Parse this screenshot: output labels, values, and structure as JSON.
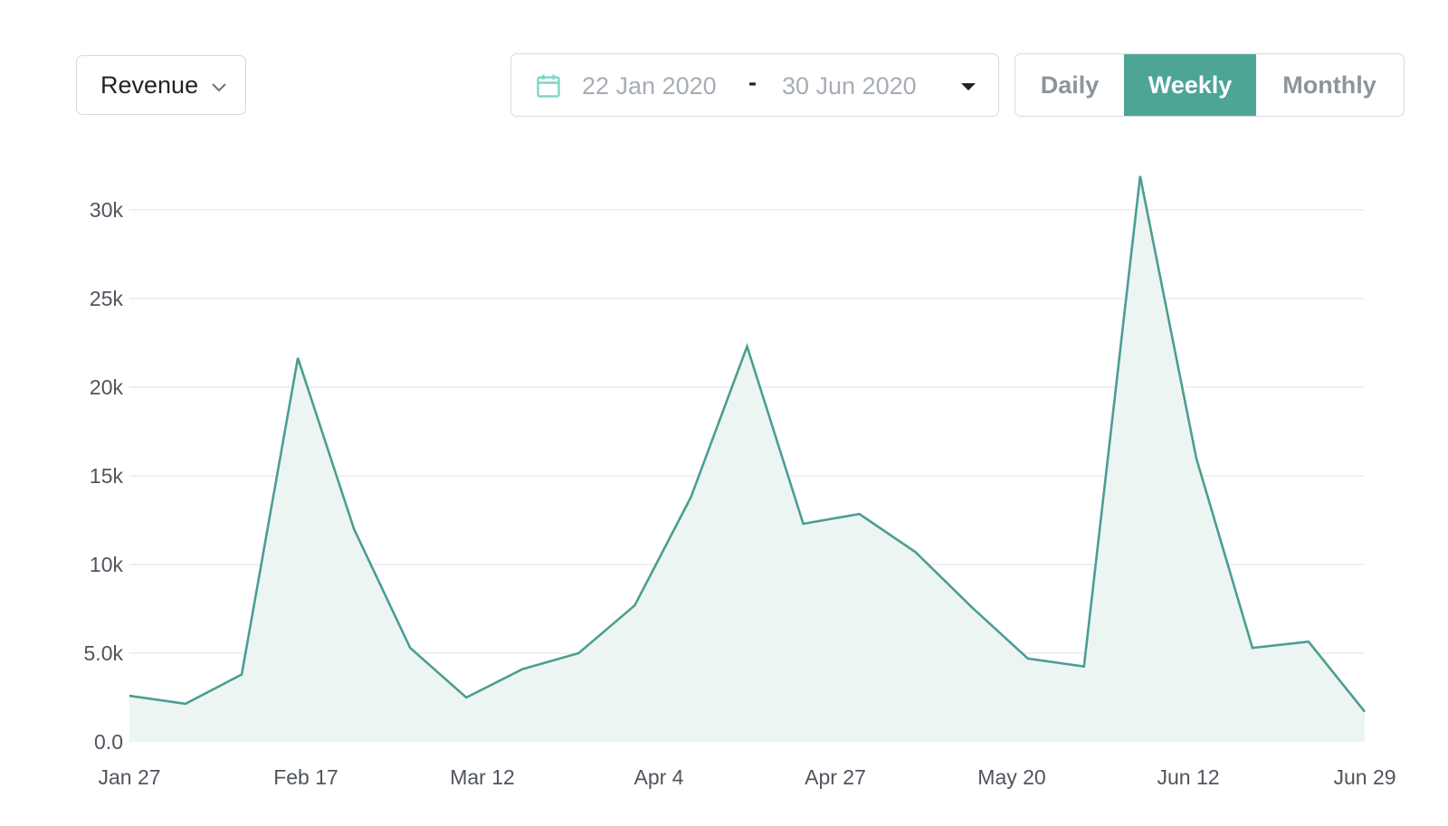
{
  "controls": {
    "metric_label": "Revenue",
    "date_start": "22 Jan 2020",
    "date_separator": "-",
    "date_end": "30 Jun 2020",
    "period_options": [
      "Daily",
      "Weekly",
      "Monthly"
    ],
    "active_period": "Weekly"
  },
  "colors": {
    "accent": "#4da596",
    "line": "#4a9e92",
    "area_fill": "#edf5f3",
    "gridline": "#ececec",
    "calendar_icon": "#7ed6c6"
  },
  "icons": {
    "metric_dropdown": "chevron-down-icon",
    "date_picker": "calendar-icon",
    "date_dropdown": "caret-down-icon"
  },
  "chart_data": {
    "type": "area",
    "title": "",
    "xlabel": "",
    "ylabel": "",
    "x": [
      "2020-01-27",
      "2020-02-03",
      "2020-02-10",
      "2020-02-17",
      "2020-02-24",
      "2020-03-02",
      "2020-03-09",
      "2020-03-16",
      "2020-03-23",
      "2020-03-30",
      "2020-04-06",
      "2020-04-13",
      "2020-04-20",
      "2020-04-27",
      "2020-05-04",
      "2020-05-11",
      "2020-05-18",
      "2020-05-25",
      "2020-06-01",
      "2020-06-08",
      "2020-06-15",
      "2020-06-22",
      "2020-06-29"
    ],
    "values": [
      2600,
      2150,
      3800,
      21650,
      12000,
      5300,
      2500,
      4100,
      5000,
      7700,
      13800,
      22300,
      12300,
      12850,
      10700,
      7600,
      4700,
      4250,
      31900,
      16000,
      5300,
      5650,
      1700
    ],
    "ylim": [
      0,
      30000
    ],
    "y_ticks": [
      "0.0",
      "5.0k",
      "10k",
      "15k",
      "20k",
      "25k",
      "30k"
    ],
    "x_tick_labels": [
      "Jan 27",
      "Feb 17",
      "Mar 12",
      "Apr 4",
      "Apr 27",
      "May 20",
      "Jun 12",
      "Jun 29"
    ],
    "grid": true,
    "legend": "none"
  }
}
